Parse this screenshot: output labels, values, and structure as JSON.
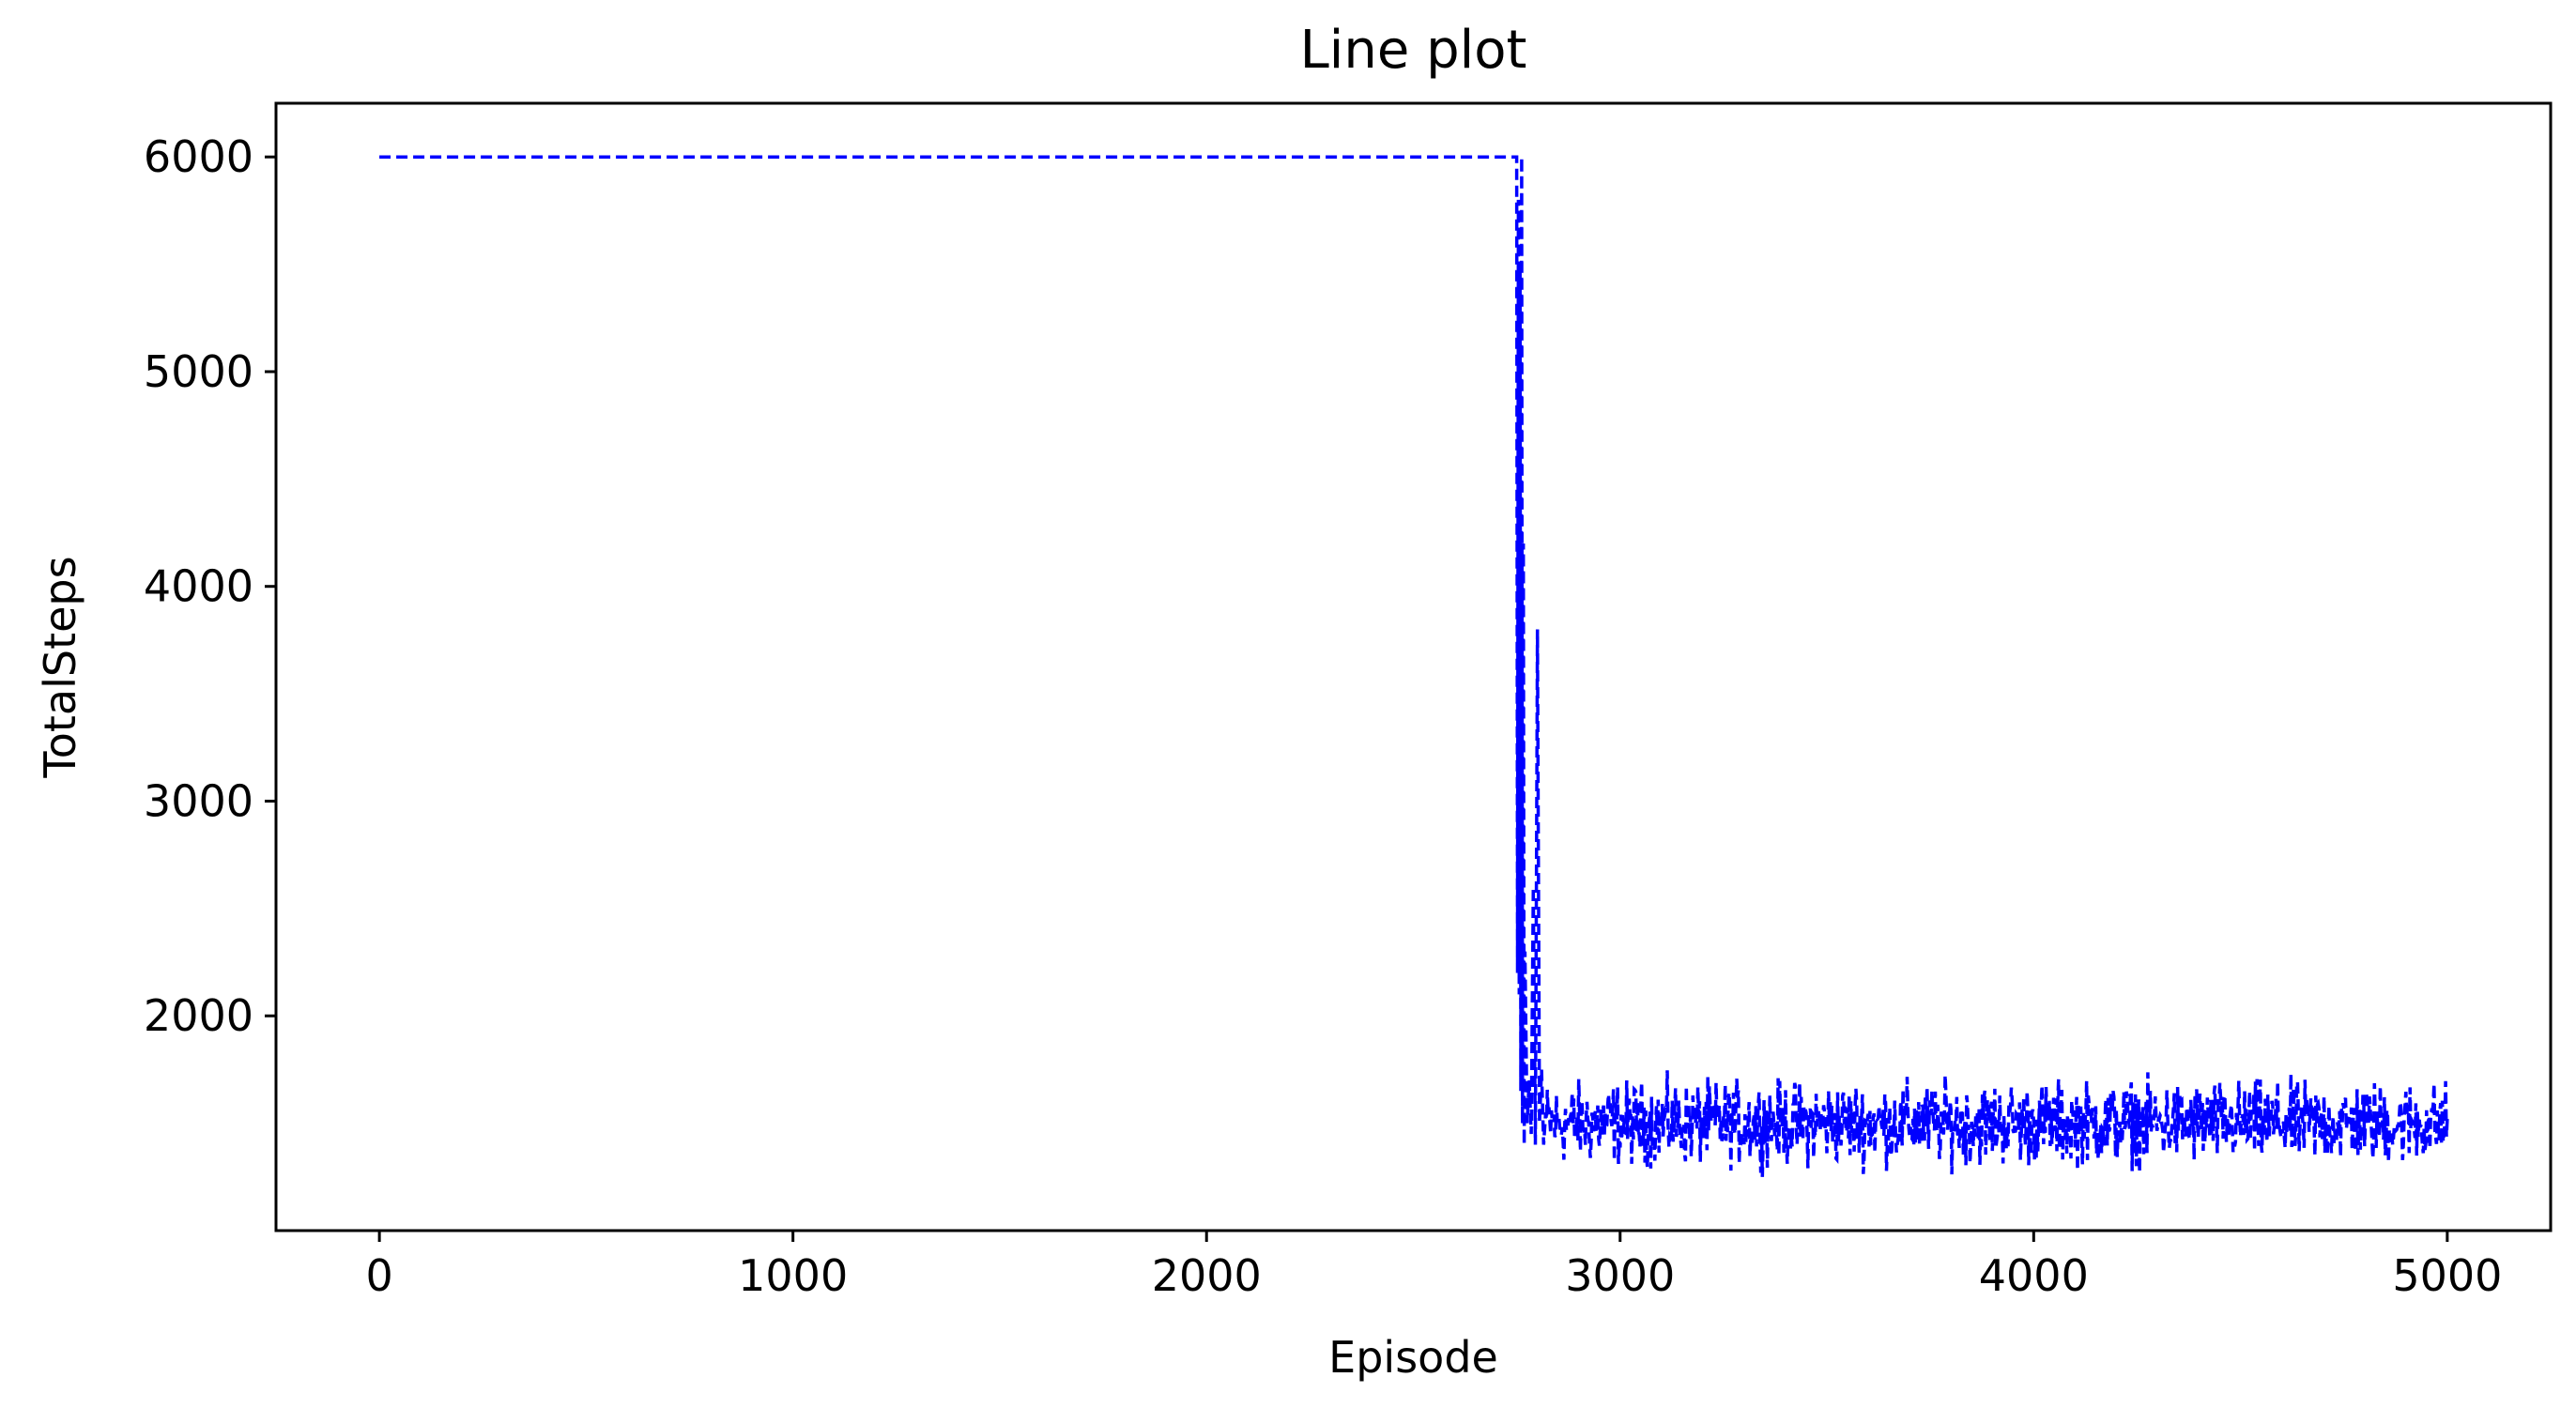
{
  "chart_data": {
    "type": "line",
    "title": "Line plot",
    "xlabel": "Episode",
    "ylabel": "TotalSteps",
    "xlim": [
      -250,
      5250
    ],
    "ylim": [
      1000,
      6250
    ],
    "xticks": [
      0,
      1000,
      2000,
      3000,
      4000,
      5000
    ],
    "yticks": [
      2000,
      3000,
      4000,
      5000,
      6000
    ],
    "grid": false,
    "line_style": "dashed",
    "series": [
      {
        "color": "#0000ff",
        "plateau": {
          "x": [
            0,
            2750
          ],
          "y": 6000
        },
        "x": [
          2750,
          2752,
          2754,
          2756,
          2758,
          2760,
          2762,
          2764,
          2766,
          2768,
          2770,
          2775,
          2780,
          2785,
          2790,
          2795,
          2800,
          2805,
          2810,
          2815,
          2820
        ],
        "y": [
          6000,
          2200,
          5800,
          2100,
          5500,
          1650,
          6000,
          1500,
          4200,
          1400,
          2300,
          1500,
          1700,
          1450,
          2600,
          1400,
          3800,
          1500,
          1750,
          1400,
          1550
        ],
        "noisy_tail": {
          "x_start": 2820,
          "x_end": 5000,
          "mean": 1500,
          "min": 1250,
          "max": 1750
        }
      }
    ]
  }
}
